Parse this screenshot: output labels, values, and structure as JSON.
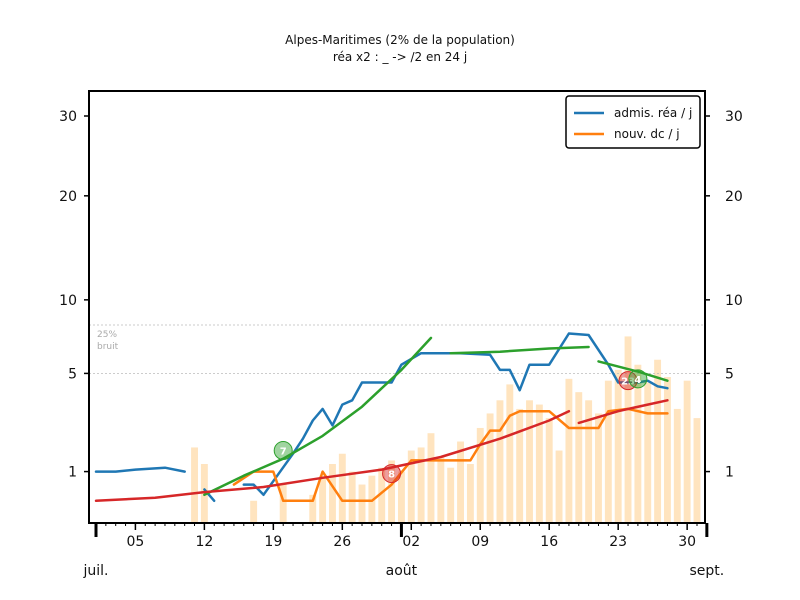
{
  "colors": {
    "admissions": "#1f77b4",
    "deaths": "#ff7f0e",
    "fit_growth": "#2ca02c",
    "fit_deaths": "#d62728",
    "bars": "#ffe4bf",
    "noise": "#bbbbbb",
    "frame": "#000000",
    "purple_box": "#d9a6e8"
  },
  "chart_data": {
    "type": "line",
    "title": "Alpes-Maritimes (2% de la population)",
    "subtitle": "réa x2 : _ -> /2 en 24 j",
    "xlabel": "",
    "ylabel": "",
    "y_scale": "sqrt",
    "ylim": [
      0,
      32
    ],
    "y_ticks": [
      1,
      5,
      10,
      20,
      30
    ],
    "x_range": [
      "2020-07-01",
      "2020-08-31"
    ],
    "x_ticks": [
      {
        "date": "2020-07-05",
        "label": "05"
      },
      {
        "date": "2020-07-12",
        "label": "12"
      },
      {
        "date": "2020-07-19",
        "label": "19"
      },
      {
        "date": "2020-07-26",
        "label": "26"
      },
      {
        "date": "2020-08-02",
        "label": "02"
      },
      {
        "date": "2020-08-09",
        "label": "09"
      },
      {
        "date": "2020-08-16",
        "label": "16"
      },
      {
        "date": "2020-08-23",
        "label": "23"
      },
      {
        "date": "2020-08-30",
        "label": "30"
      }
    ],
    "month_labels": [
      {
        "date": "2020-07-01",
        "label": "juil."
      },
      {
        "date": "2020-08-01",
        "label": "août"
      },
      {
        "date": "2020-09-01",
        "label": "sept."
      }
    ],
    "legend": {
      "position": "top-right",
      "entries": [
        {
          "label": "admis. réa / j",
          "color_key": "admissions"
        },
        {
          "label": "nouv. dc / j",
          "color_key": "deaths"
        }
      ]
    },
    "noise_band": {
      "label_top": "25%",
      "label_bottom": "bruit",
      "upper": 8.1,
      "lower": 5.0
    },
    "series": [
      {
        "name": "admis. réa / j",
        "color_key": "admissions",
        "segments": [
          [
            [
              "2020-07-01",
              1.0
            ],
            [
              "2020-07-03",
              1.0
            ],
            [
              "2020-07-05",
              1.05
            ],
            [
              "2020-07-08",
              1.1
            ],
            [
              "2020-07-10",
              1.0
            ]
          ],
          [
            [
              "2020-07-12",
              0.6
            ],
            [
              "2020-07-13",
              0.4
            ]
          ],
          [
            [
              "2020-07-16",
              0.7
            ],
            [
              "2020-07-17",
              0.7
            ],
            [
              "2020-07-18",
              0.5
            ],
            [
              "2020-07-21",
              1.5
            ],
            [
              "2020-07-22",
              2.0
            ],
            [
              "2020-07-23",
              2.7
            ],
            [
              "2020-07-24",
              3.2
            ],
            [
              "2020-07-25",
              2.5
            ],
            [
              "2020-07-26",
              3.4
            ],
            [
              "2020-07-27",
              3.6
            ],
            [
              "2020-07-28",
              4.5
            ],
            [
              "2020-07-31",
              4.5
            ],
            [
              "2020-08-01",
              5.5
            ],
            [
              "2020-08-03",
              6.2
            ],
            [
              "2020-08-07",
              6.2
            ],
            [
              "2020-08-10",
              6.1
            ],
            [
              "2020-08-11",
              5.2
            ],
            [
              "2020-08-12",
              5.2
            ],
            [
              "2020-08-13",
              4.1
            ],
            [
              "2020-08-14",
              5.5
            ],
            [
              "2020-08-16",
              5.5
            ],
            [
              "2020-08-18",
              7.5
            ],
            [
              "2020-08-20",
              7.4
            ],
            [
              "2020-08-22",
              5.5
            ],
            [
              "2020-08-23",
              4.5
            ],
            [
              "2020-08-24",
              4.5
            ],
            [
              "2020-08-25",
              4.5
            ],
            [
              "2020-08-26",
              4.6
            ],
            [
              "2020-08-27",
              4.3
            ],
            [
              "2020-08-28",
              4.2
            ]
          ]
        ]
      },
      {
        "name": "nouv. dc / j",
        "color_key": "deaths",
        "segments": [
          [
            [
              "2020-07-15",
              0.7
            ],
            [
              "2020-07-17",
              1.0
            ],
            [
              "2020-07-19",
              1.0
            ],
            [
              "2020-07-20",
              0.4
            ],
            [
              "2020-07-23",
              0.4
            ],
            [
              "2020-07-24",
              1.0
            ],
            [
              "2020-07-26",
              0.4
            ],
            [
              "2020-07-29",
              0.4
            ],
            [
              "2020-07-31",
              0.7
            ],
            [
              "2020-08-02",
              1.3
            ],
            [
              "2020-08-05",
              1.3
            ],
            [
              "2020-08-08",
              1.3
            ],
            [
              "2020-08-09",
              1.8
            ],
            [
              "2020-08-10",
              2.3
            ],
            [
              "2020-08-11",
              2.3
            ],
            [
              "2020-08-12",
              2.9
            ],
            [
              "2020-08-13",
              3.1
            ],
            [
              "2020-08-16",
              3.1
            ],
            [
              "2020-08-18",
              2.4
            ],
            [
              "2020-08-19",
              2.4
            ],
            [
              "2020-08-20",
              2.4
            ],
            [
              "2020-08-21",
              2.4
            ],
            [
              "2020-08-22",
              3.1
            ],
            [
              "2020-08-24",
              3.2
            ],
            [
              "2020-08-26",
              3.0
            ],
            [
              "2020-08-28",
              3.0
            ]
          ]
        ]
      },
      {
        "name": "",
        "color_key": "fit_growth",
        "segments": [
          [
            [
              "2020-07-12",
              0.5
            ],
            [
              "2020-07-16",
              0.9
            ],
            [
              "2020-07-20",
              1.35
            ],
            [
              "2020-07-24",
              2.1
            ],
            [
              "2020-07-28",
              3.3
            ],
            [
              "2020-08-01",
              5.2
            ],
            [
              "2020-08-04",
              7.2
            ]
          ],
          [
            [
              "2020-08-06",
              6.2
            ],
            [
              "2020-08-11",
              6.3
            ],
            [
              "2020-08-16",
              6.5
            ],
            [
              "2020-08-20",
              6.6
            ]
          ],
          [
            [
              "2020-08-21",
              5.7
            ],
            [
              "2020-08-25",
              5.1
            ],
            [
              "2020-08-28",
              4.6
            ]
          ]
        ]
      },
      {
        "name": "",
        "color_key": "fit_deaths",
        "segments": [
          [
            [
              "2020-07-01",
              0.4
            ],
            [
              "2020-07-07",
              0.45
            ],
            [
              "2020-07-12",
              0.55
            ],
            [
              "2020-07-18",
              0.65
            ],
            [
              "2020-07-24",
              0.85
            ],
            [
              "2020-07-30",
              1.05
            ],
            [
              "2020-08-05",
              1.4
            ],
            [
              "2020-08-11",
              2.0
            ],
            [
              "2020-08-16",
              2.7
            ],
            [
              "2020-08-18",
              3.1
            ]
          ],
          [
            [
              "2020-08-19",
              2.6
            ],
            [
              "2020-08-23",
              3.1
            ],
            [
              "2020-08-26",
              3.4
            ],
            [
              "2020-08-28",
              3.6
            ]
          ]
        ]
      }
    ],
    "bars": [
      {
        "date": "2020-07-11",
        "value": 1.7
      },
      {
        "date": "2020-07-12",
        "value": 1.2
      },
      {
        "date": "2020-07-17",
        "value": 0.4
      },
      {
        "date": "2020-07-20",
        "value": 0.7
      },
      {
        "date": "2020-07-23",
        "value": 0.5
      },
      {
        "date": "2020-07-24",
        "value": 0.9
      },
      {
        "date": "2020-07-25",
        "value": 1.2
      },
      {
        "date": "2020-07-26",
        "value": 1.5
      },
      {
        "date": "2020-07-27",
        "value": 1.0
      },
      {
        "date": "2020-07-28",
        "value": 0.7
      },
      {
        "date": "2020-07-29",
        "value": 0.9
      },
      {
        "date": "2020-07-30",
        "value": 1.1
      },
      {
        "date": "2020-07-31",
        "value": 1.3
      },
      {
        "date": "2020-08-01",
        "value": 1.0
      },
      {
        "date": "2020-08-02",
        "value": 1.6
      },
      {
        "date": "2020-08-03",
        "value": 1.7
      },
      {
        "date": "2020-08-04",
        "value": 2.2
      },
      {
        "date": "2020-08-05",
        "value": 1.4
      },
      {
        "date": "2020-08-06",
        "value": 1.1
      },
      {
        "date": "2020-08-07",
        "value": 1.9
      },
      {
        "date": "2020-08-08",
        "value": 1.2
      },
      {
        "date": "2020-08-09",
        "value": 2.4
      },
      {
        "date": "2020-08-10",
        "value": 3.0
      },
      {
        "date": "2020-08-11",
        "value": 3.6
      },
      {
        "date": "2020-08-12",
        "value": 4.4
      },
      {
        "date": "2020-08-13",
        "value": 3.2
      },
      {
        "date": "2020-08-14",
        "value": 3.6
      },
      {
        "date": "2020-08-15",
        "value": 3.4
      },
      {
        "date": "2020-08-16",
        "value": 2.8
      },
      {
        "date": "2020-08-17",
        "value": 1.6
      },
      {
        "date": "2020-08-18",
        "value": 4.7
      },
      {
        "date": "2020-08-19",
        "value": 4.0
      },
      {
        "date": "2020-08-20",
        "value": 3.6
      },
      {
        "date": "2020-08-21",
        "value": 3.0
      },
      {
        "date": "2020-08-22",
        "value": 4.6
      },
      {
        "date": "2020-08-23",
        "value": 5.2
      },
      {
        "date": "2020-08-24",
        "value": 7.3
      },
      {
        "date": "2020-08-25",
        "value": 5.5
      },
      {
        "date": "2020-08-26",
        "value": 4.5
      },
      {
        "date": "2020-08-27",
        "value": 5.8
      },
      {
        "date": "2020-08-28",
        "value": 4.8
      },
      {
        "date": "2020-08-29",
        "value": 3.2
      },
      {
        "date": "2020-08-30",
        "value": 4.6
      },
      {
        "date": "2020-08-31",
        "value": 2.8
      }
    ],
    "markers": [
      {
        "date": "2020-07-20",
        "value": 1.6,
        "label": "7",
        "color_key": "fit_growth"
      },
      {
        "date": "2020-07-31",
        "value": 0.95,
        "label": "8",
        "color_key": "fit_deaths"
      },
      {
        "date": "2020-08-24",
        "value": 4.6,
        "label": "23",
        "color_key": "fit_deaths"
      },
      {
        "date": "2020-08-25",
        "value": 4.7,
        "label": "4",
        "color_key": "fit_growth"
      }
    ]
  }
}
